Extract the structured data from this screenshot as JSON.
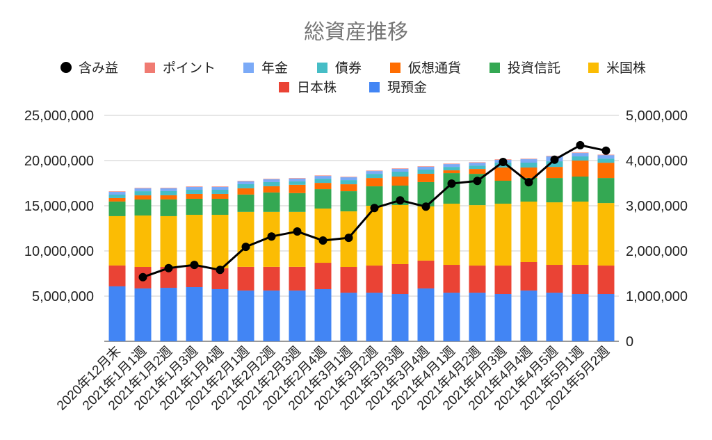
{
  "chart_data": {
    "type": "bar",
    "stacked": true,
    "title": "総資産推移",
    "categories": [
      "2020年12月末",
      "2021年1月1週",
      "2021年1月2週",
      "2021年1月3週",
      "2021年1月4週",
      "2021年2月1週",
      "2021年2月2週",
      "2021年2月3週",
      "2021年2月4週",
      "2021年3月1週",
      "2021年3月2週",
      "2021年3月3週",
      "2021年3月4週",
      "2021年4月1週",
      "2021年4月2週",
      "2021年4月3週",
      "2021年4月4週",
      "2021年4月5週",
      "2021年5月1週",
      "2021年5月2週"
    ],
    "y_left": {
      "min": 0,
      "max": 25000000,
      "tick_labels": [
        "5,000,000",
        "10,000,000",
        "15,000,000",
        "20,000,000",
        "25,000,000"
      ]
    },
    "y_right": {
      "min": 0,
      "max": 5000000,
      "tick_labels": [
        "0",
        "1,000,000",
        "2,000,000",
        "3,000,000",
        "4,000,000",
        "5,000,000"
      ]
    },
    "grid": true,
    "legend_position": "top",
    "series": [
      {
        "name": "含み益",
        "type": "line",
        "axis": "right",
        "color": "#000000",
        "values": [
          null,
          1420000,
          1620000,
          1690000,
          1580000,
          2090000,
          2320000,
          2430000,
          2230000,
          2290000,
          2950000,
          3120000,
          2980000,
          3490000,
          3550000,
          3970000,
          3520000,
          4020000,
          4340000,
          4220000
        ]
      },
      {
        "name": "ポイント",
        "type": "bar",
        "axis": "left",
        "color": "#F07B72",
        "values": [
          50000,
          50000,
          50000,
          50000,
          50000,
          50000,
          50000,
          50000,
          50000,
          50000,
          50000,
          50000,
          50000,
          50000,
          50000,
          50000,
          50000,
          50000,
          50000,
          50000
        ]
      },
      {
        "name": "年金",
        "type": "bar",
        "axis": "left",
        "color": "#7BAAF7",
        "values": [
          310000,
          310000,
          310000,
          310000,
          310000,
          310000,
          310000,
          310000,
          310000,
          310000,
          310000,
          310000,
          310000,
          310000,
          310000,
          310000,
          380000,
          540000,
          380000,
          380000
        ]
      },
      {
        "name": "債券",
        "type": "bar",
        "axis": "left",
        "color": "#46BDC6",
        "values": [
          380000,
          460000,
          460000,
          460000,
          460000,
          460000,
          460000,
          380000,
          460000,
          460000,
          460000,
          540000,
          460000,
          380000,
          380000,
          540000,
          540000,
          620000,
          460000,
          460000
        ]
      },
      {
        "name": "仮想通貨",
        "type": "bar",
        "axis": "left",
        "color": "#FF6D01",
        "values": [
          380000,
          460000,
          460000,
          540000,
          540000,
          690000,
          690000,
          920000,
          690000,
          770000,
          920000,
          1000000,
          920000,
          310000,
          540000,
          1460000,
          1150000,
          1230000,
          1770000,
          1690000
        ]
      },
      {
        "name": "投資信託",
        "type": "bar",
        "axis": "left",
        "color": "#34A853",
        "values": [
          1620000,
          1770000,
          1850000,
          1770000,
          1770000,
          1920000,
          2150000,
          2080000,
          2150000,
          2230000,
          2150000,
          2150000,
          2690000,
          3380000,
          3460000,
          2540000,
          2620000,
          2690000,
          2770000,
          2770000
        ]
      },
      {
        "name": "米国株",
        "type": "bar",
        "axis": "left",
        "color": "#FBBC04",
        "values": [
          5460000,
          5690000,
          5620000,
          5690000,
          5920000,
          6080000,
          6080000,
          6080000,
          6000000,
          6150000,
          6620000,
          6540000,
          6000000,
          6770000,
          6690000,
          6850000,
          6690000,
          6920000,
          7000000,
          6920000
        ]
      },
      {
        "name": "日本株",
        "type": "bar",
        "axis": "left",
        "color": "#EA4335",
        "values": [
          2310000,
          2380000,
          2310000,
          2310000,
          2310000,
          2620000,
          2620000,
          2620000,
          2920000,
          2850000,
          3000000,
          3310000,
          3080000,
          3080000,
          3000000,
          3150000,
          3150000,
          3080000,
          3230000,
          3150000
        ]
      },
      {
        "name": "現預金",
        "type": "bar",
        "axis": "left",
        "color": "#4285F4",
        "values": [
          6080000,
          5850000,
          5920000,
          6000000,
          5770000,
          5620000,
          5620000,
          5620000,
          5770000,
          5380000,
          5380000,
          5230000,
          5850000,
          5380000,
          5380000,
          5230000,
          5620000,
          5380000,
          5230000,
          5230000
        ]
      }
    ]
  }
}
